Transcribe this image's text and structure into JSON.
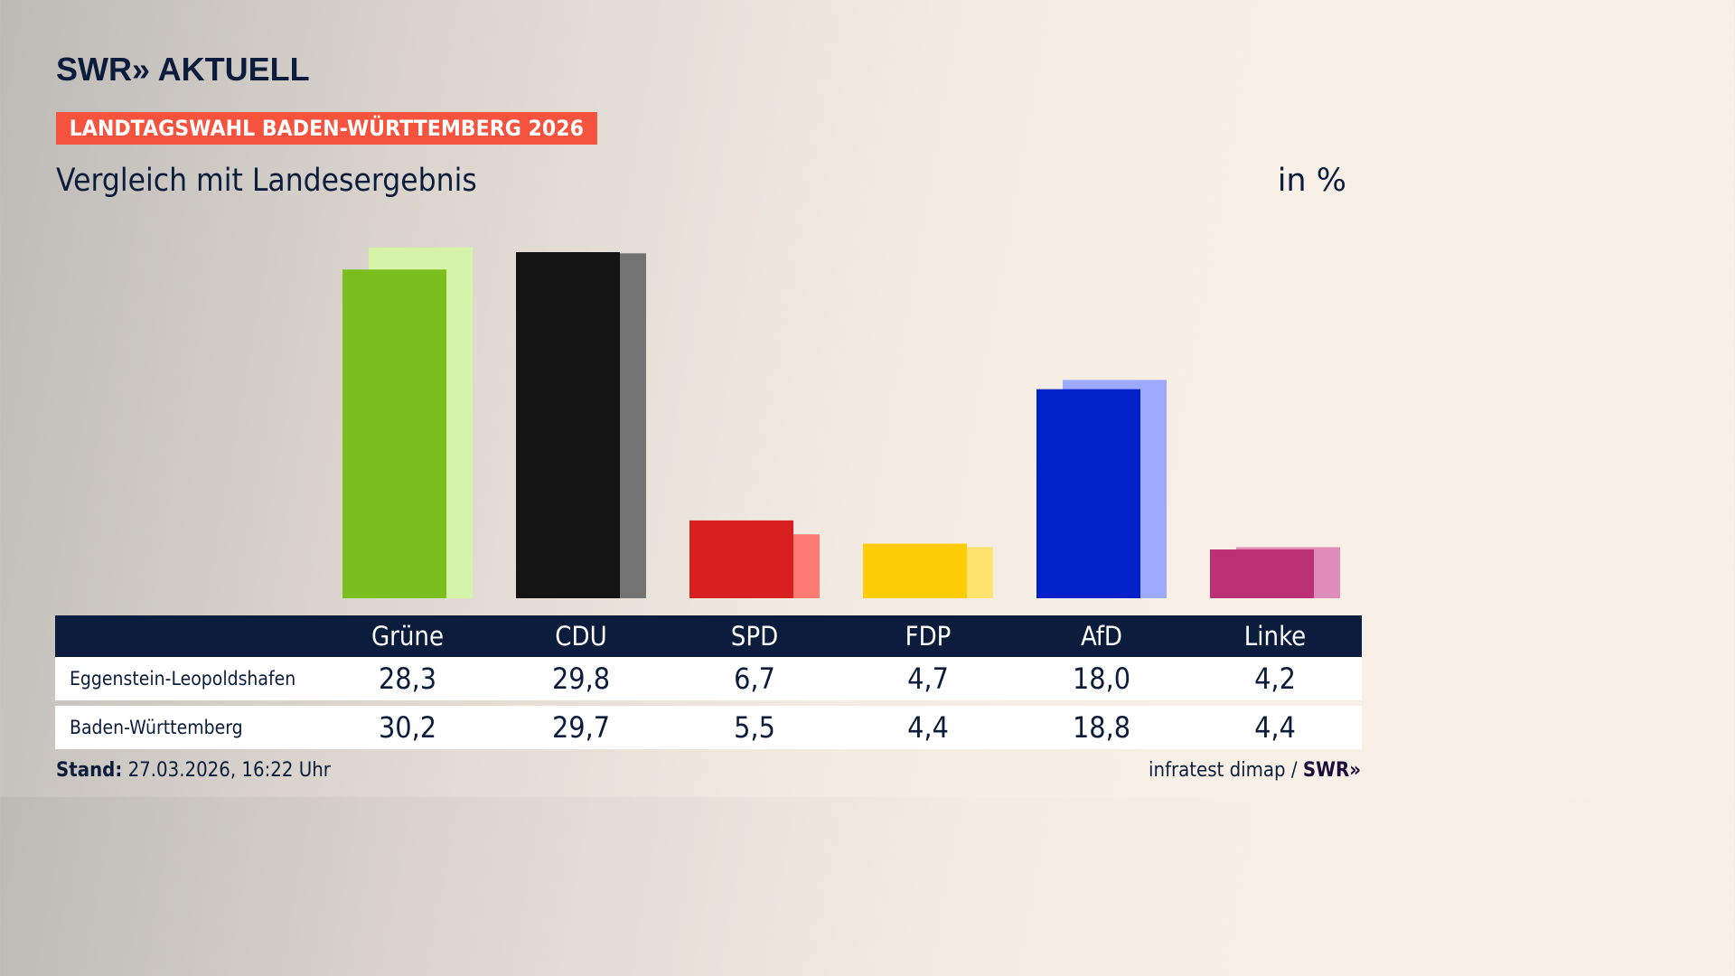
{
  "brand": "SWR» AKTUELL",
  "badge": "LANDTAGSWAHL BADEN-WÜRTTEMBERG 2026",
  "subtitle": "Vergleich mit Landesergebnis",
  "unit": "in %",
  "chart_data": {
    "type": "bar",
    "categories": [
      "Grüne",
      "CDU",
      "SPD",
      "FDP",
      "AfD",
      "Linke"
    ],
    "series": [
      {
        "name": "Eggenstein-Leopoldshafen",
        "values": [
          28.3,
          29.8,
          6.7,
          4.7,
          18.0,
          4.2
        ],
        "display": [
          "28,3",
          "29,8",
          "6,7",
          "4,7",
          "18,0",
          "4,2"
        ],
        "colors": [
          "#7abf1e",
          "#141414",
          "#d7201f",
          "#ffcc0a",
          "#0020c8",
          "#bc3175"
        ]
      },
      {
        "name": "Baden-Württemberg",
        "values": [
          30.2,
          29.7,
          5.5,
          4.4,
          18.8,
          4.4
        ],
        "display": [
          "30,2",
          "29,7",
          "5,5",
          "4,4",
          "18,8",
          "4,4"
        ],
        "colors": [
          "#d5f4aa",
          "#737373",
          "#ff7a73",
          "#ffe36f",
          "#9eaaff",
          "#df8dbb"
        ]
      }
    ],
    "ylim": [
      0,
      30.2
    ]
  },
  "footer": {
    "stand_label": "Stand:",
    "stand_value": "27.03.2026, 16:22 Uhr",
    "source": "infratest dimap /",
    "source_logo": "SWR»"
  }
}
